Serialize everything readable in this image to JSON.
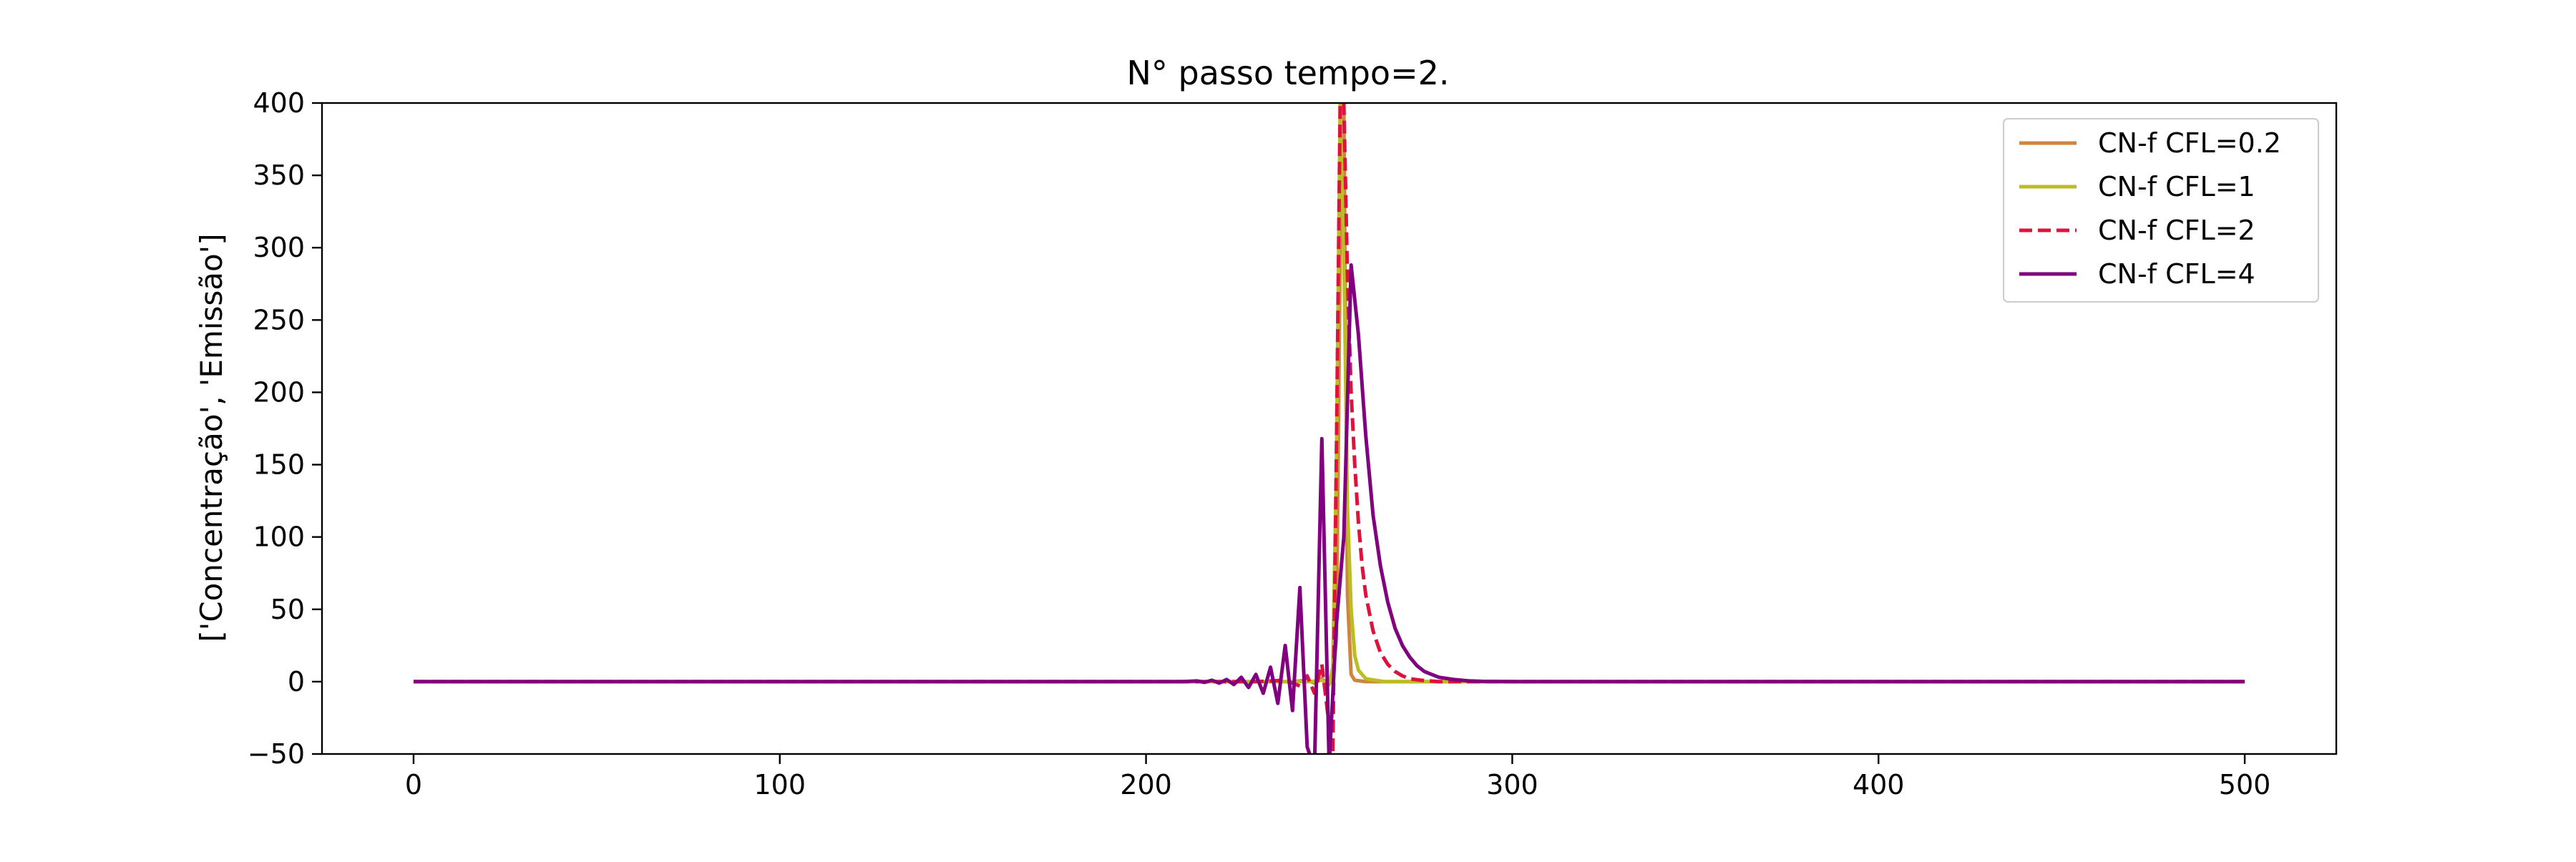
{
  "chart_data": {
    "type": "line",
    "title": "N° passo tempo=2.",
    "xlabel": "",
    "ylabel": "['Concentração', 'Emissão']",
    "xlim": [
      -25,
      525
    ],
    "ylim": [
      -50,
      400
    ],
    "xticks": [
      0,
      100,
      200,
      300,
      400,
      500
    ],
    "yticks": [
      -50,
      0,
      50,
      100,
      150,
      200,
      250,
      300,
      350,
      400
    ],
    "xtick_labels": [
      "0",
      "100",
      "200",
      "300",
      "400",
      "500"
    ],
    "ytick_labels": [
      "−50",
      "0",
      "50",
      "100",
      "150",
      "200",
      "250",
      "300",
      "350",
      "400"
    ],
    "grid": false,
    "legend_position": "top-right",
    "series": [
      {
        "name": "CN-f CFL=0.2",
        "color": "#cd853f",
        "dash": "solid",
        "points": [
          [
            0,
            0
          ],
          [
            200,
            0
          ],
          [
            240,
            0
          ],
          [
            244,
            1
          ],
          [
            246,
            -1
          ],
          [
            248,
            2
          ],
          [
            250,
            -2
          ],
          [
            251,
            3
          ],
          [
            252,
            30
          ],
          [
            253,
            300
          ],
          [
            254,
            400
          ],
          [
            255,
            60
          ],
          [
            256,
            5
          ],
          [
            257,
            1
          ],
          [
            260,
            0
          ],
          [
            300,
            0
          ],
          [
            500,
            0
          ]
        ]
      },
      {
        "name": "CN-f CFL=1",
        "color": "#bcbd22",
        "dash": "solid",
        "points": [
          [
            0,
            0
          ],
          [
            200,
            0
          ],
          [
            240,
            0
          ],
          [
            245,
            0
          ],
          [
            248,
            1
          ],
          [
            250,
            -2
          ],
          [
            251,
            10
          ],
          [
            252,
            150
          ],
          [
            253,
            400
          ],
          [
            254,
            300
          ],
          [
            255,
            120
          ],
          [
            256,
            50
          ],
          [
            257,
            18
          ],
          [
            258,
            8
          ],
          [
            260,
            2
          ],
          [
            265,
            0
          ],
          [
            300,
            0
          ],
          [
            500,
            0
          ]
        ]
      },
      {
        "name": "CN-f CFL=2",
        "color": "#dc143c",
        "dash": "dashed",
        "points": [
          [
            0,
            0
          ],
          [
            200,
            0
          ],
          [
            230,
            0
          ],
          [
            238,
            1
          ],
          [
            242,
            -3
          ],
          [
            244,
            4
          ],
          [
            246,
            -8
          ],
          [
            248,
            12
          ],
          [
            250,
            -30
          ],
          [
            251,
            -50
          ],
          [
            252,
            160
          ],
          [
            253,
            400
          ],
          [
            254,
            400
          ],
          [
            255,
            280
          ],
          [
            256,
            200
          ],
          [
            257,
            150
          ],
          [
            258,
            110
          ],
          [
            259,
            80
          ],
          [
            260,
            60
          ],
          [
            262,
            35
          ],
          [
            264,
            20
          ],
          [
            266,
            12
          ],
          [
            268,
            7
          ],
          [
            270,
            4
          ],
          [
            272,
            2
          ],
          [
            275,
            1
          ],
          [
            280,
            0
          ],
          [
            300,
            0
          ],
          [
            500,
            0
          ]
        ]
      },
      {
        "name": "CN-f CFL=4",
        "color": "#800080",
        "dash": "solid",
        "points": [
          [
            0,
            0
          ],
          [
            200,
            0
          ],
          [
            210,
            0
          ],
          [
            214,
            0.5
          ],
          [
            216,
            -0.5
          ],
          [
            218,
            1
          ],
          [
            220,
            -1
          ],
          [
            222,
            1.5
          ],
          [
            224,
            -2
          ],
          [
            226,
            3
          ],
          [
            228,
            -4
          ],
          [
            230,
            5
          ],
          [
            232,
            -8
          ],
          [
            234,
            10
          ],
          [
            236,
            -15
          ],
          [
            238,
            25
          ],
          [
            240,
            -20
          ],
          [
            242,
            65
          ],
          [
            244,
            -45
          ],
          [
            246,
            -60
          ],
          [
            248,
            168
          ],
          [
            250,
            -58
          ],
          [
            252,
            40
          ],
          [
            254,
            100
          ],
          [
            256,
            288
          ],
          [
            258,
            240
          ],
          [
            260,
            170
          ],
          [
            262,
            115
          ],
          [
            264,
            80
          ],
          [
            266,
            55
          ],
          [
            268,
            37
          ],
          [
            270,
            25
          ],
          [
            272,
            17
          ],
          [
            274,
            11
          ],
          [
            276,
            7
          ],
          [
            278,
            5
          ],
          [
            280,
            3
          ],
          [
            284,
            1.5
          ],
          [
            288,
            0.6
          ],
          [
            292,
            0.2
          ],
          [
            300,
            0
          ],
          [
            500,
            0
          ]
        ]
      }
    ]
  }
}
